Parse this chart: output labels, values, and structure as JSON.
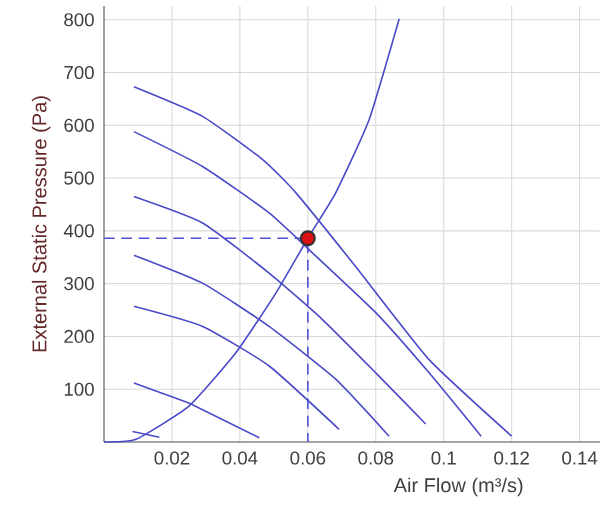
{
  "chart_data": {
    "type": "line",
    "xlabel": "Air Flow (m³/s)",
    "ylabel": "External Static Pressure (Pa)",
    "xlim": [
      0,
      0.146
    ],
    "ylim": [
      0,
      826
    ],
    "xticks": [
      0.02,
      0.04,
      0.06,
      0.08,
      0.1,
      0.12,
      0.14
    ],
    "yticks": [
      100,
      200,
      300,
      400,
      500,
      600,
      700,
      800
    ],
    "grid": true,
    "marker": "none",
    "line_style": "solid",
    "series": [
      {
        "color": "#4a4ac8",
        "x": [
          0.0088,
          0.029,
          0.0467,
          0.0565,
          0.074,
          0.0957,
          0.12
        ],
        "values": [
          673,
          617,
          535,
          472,
          333,
          156,
          11
        ]
      },
      {
        "color": "#4a4ac8",
        "x": [
          0.0088,
          0.029,
          0.0486,
          0.0624,
          0.08,
          0.0957,
          0.111
        ],
        "values": [
          588,
          522,
          434,
          352,
          245,
          131,
          11
        ]
      },
      {
        "color": "#4a4ac8",
        "x": [
          0.0088,
          0.029,
          0.0486,
          0.0643,
          0.08,
          0.0947
        ],
        "values": [
          465,
          415,
          320,
          232,
          131,
          34
        ]
      },
      {
        "color": "#4a4ac8",
        "x": [
          0.0088,
          0.029,
          0.0486,
          0.0682,
          0.0839
        ],
        "values": [
          354,
          301,
          219,
          119,
          11
        ]
      },
      {
        "color": "#4a4ac8",
        "x": [
          0.0088,
          0.029,
          0.0486,
          0.0692
        ],
        "values": [
          257,
          219,
          144,
          24
        ]
      },
      {
        "color": "#4a4ac8",
        "x": [
          0.0088,
          0.025,
          0.0457
        ],
        "values": [
          112,
          74,
          8
        ]
      },
      {
        "color": "#4a4ac8",
        "x": [
          0.0084,
          0.0163
        ],
        "values": [
          20,
          9
        ]
      },
      {
        "color": "#4a4ac8",
        "x": [
          0,
          0.0094,
          0.025,
          0.0388,
          0.0506,
          0.06,
          0.0682,
          0.078,
          0.0869
        ],
        "values": [
          0,
          5,
          68,
          169,
          282,
          386,
          472,
          610,
          802
        ]
      },
      {
        "color": "#5050d8",
        "line_style": "dashed",
        "x": [
          0,
          0.06,
          0.06
        ],
        "values": [
          386,
          386,
          0
        ]
      },
      {
        "type": "scatter",
        "marker": "circle",
        "color": "#dd1111",
        "x": [
          0.06
        ],
        "values": [
          386
        ]
      }
    ]
  }
}
